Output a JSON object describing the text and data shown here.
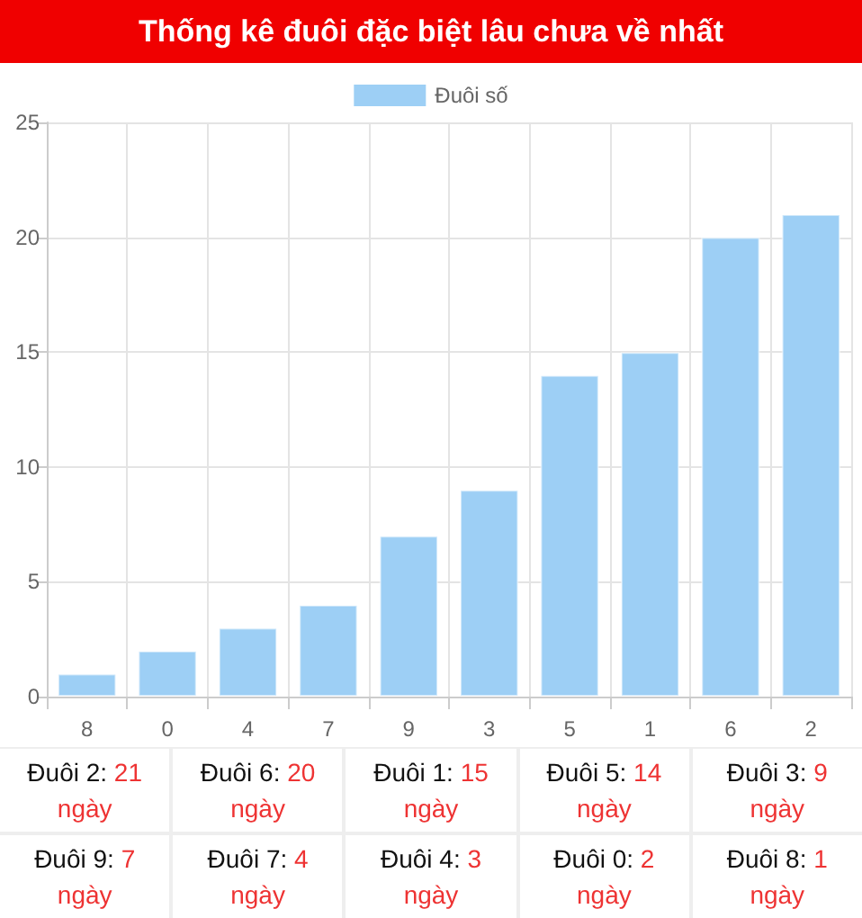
{
  "chart_data": {
    "type": "bar",
    "title": "Thống kê đuôi đặc biệt lâu chưa về nhất",
    "categories": [
      "8",
      "0",
      "4",
      "7",
      "9",
      "3",
      "5",
      "1",
      "6",
      "2"
    ],
    "series": [
      {
        "name": "Đuôi số",
        "color": "#9dcff5",
        "values": [
          1,
          2,
          3,
          4,
          7,
          9,
          14,
          15,
          20,
          21
        ]
      }
    ],
    "ylim": [
      0,
      25
    ],
    "yticks": [
      0,
      5,
      10,
      15,
      20,
      25
    ],
    "grid": true,
    "legend": "top",
    "annotations": [
      "Đuôi 2: 21 ngày",
      "Đuôi 6: 20 ngày",
      "Đuôi 1: 15 ngày",
      "Đuôi 5: 14 ngày",
      "Đuôi 3: 9 ngày",
      "Đuôi 9: 7 ngày",
      "Đuôi 7: 4 ngày",
      "Đuôi 4: 3 ngày",
      "Đuôi 0: 2 ngày",
      "Đuôi 8: 1 ngày"
    ]
  }
}
